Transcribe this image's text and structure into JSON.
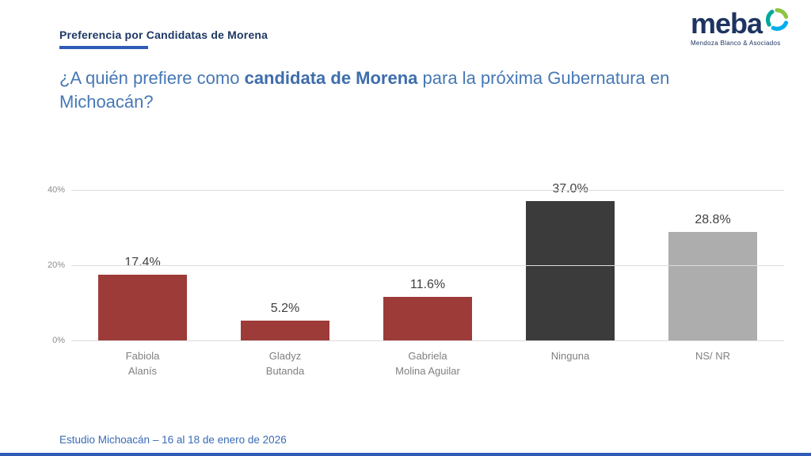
{
  "header": {
    "kicker": "Preferencia por Candidatas de Morena",
    "logo": {
      "name": "meba",
      "subtitle": "Mendoza Blanco & Asociados"
    }
  },
  "question": {
    "pre": "¿A quién prefiere como ",
    "bold": "candidata de Morena",
    "post": " para la próxima Gubernatura en Michoacán?"
  },
  "chart_data": {
    "type": "bar",
    "title": "¿A quién prefiere como candidata de Morena para la próxima Gubernatura en Michoacán?",
    "categories": [
      "Fabiola Alanís",
      "Gladyz Butanda",
      "Gabriela Molina Aguilar",
      "Ninguna",
      "NS/ NR"
    ],
    "category_lines": [
      [
        "Fabiola",
        "Alanís"
      ],
      [
        "Gladyz",
        "Butanda"
      ],
      [
        "Gabriela",
        "Molina Aguilar"
      ],
      [
        "Ninguna"
      ],
      [
        "NS/ NR"
      ]
    ],
    "values": [
      17.4,
      5.2,
      11.6,
      37.0,
      28.8
    ],
    "value_labels": [
      "17.4%",
      "5.2%",
      "11.6%",
      "37.0%",
      "28.8%"
    ],
    "bar_colors": [
      "#9D3B38",
      "#9D3B38",
      "#9D3B38",
      "#3B3B3B",
      "#ADADAD"
    ],
    "xlabel": "",
    "ylabel": "",
    "ylim": [
      0,
      40
    ],
    "yticks": [
      {
        "value": 0,
        "label": "0%"
      },
      {
        "value": 20,
        "label": "20%"
      },
      {
        "value": 40,
        "label": "40%"
      }
    ],
    "grid": true,
    "legend": false
  },
  "footer": {
    "text": "Estudio Michoacán – 16 al 18 de enero de 2026"
  },
  "colors": {
    "accent_blue": "#2F5BB7",
    "navy": "#1F3864",
    "question_blue": "#4678B4",
    "maroon": "#9D3B38",
    "dark_gray": "#3B3B3B",
    "light_gray": "#ADADAD"
  }
}
